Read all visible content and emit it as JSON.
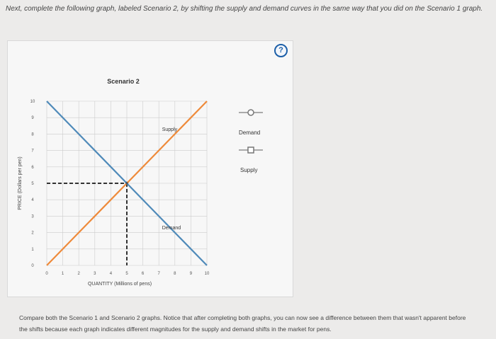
{
  "instruction": "Next, complete the following graph, labeled Scenario 2, by shifting the supply and demand curves in the same way that you did on the Scenario 1 graph.",
  "help_label": "?",
  "legend": {
    "demand_label": "Demand",
    "supply_label": "Supply",
    "demand_icon": "circle-marker-icon",
    "supply_icon": "square-marker-icon"
  },
  "compare_text": "Compare both the Scenario 1 and Scenario 2 graphs. Notice that after completing both graphs, you can now see a difference between them that wasn't apparent before the shifts because each graph indicates different magnitudes for the supply and demand shifts in the market for pens.",
  "colors": {
    "demand": "#4f8ab9",
    "supply": "#ee8a3a",
    "grid": "#cccccc",
    "equilibrium": "#333333"
  },
  "chart_data": {
    "type": "line",
    "title": "Scenario 2",
    "xlabel": "QUANTITY (Millions of pens)",
    "ylabel": "PRICE (Dollars per pen)",
    "xlim": [
      0,
      10
    ],
    "ylim": [
      0,
      10
    ],
    "x_ticks": [
      "0",
      "1",
      "2",
      "3",
      "4",
      "5",
      "6",
      "7",
      "8",
      "9",
      "10"
    ],
    "y_ticks": [
      "0",
      "1",
      "2",
      "3",
      "4",
      "5",
      "6",
      "7",
      "8",
      "9",
      "10"
    ],
    "grid": true,
    "series": [
      {
        "name": "Supply",
        "x": [
          0,
          10
        ],
        "y": [
          0,
          10
        ]
      },
      {
        "name": "Demand",
        "x": [
          0,
          10
        ],
        "y": [
          10,
          0
        ]
      }
    ],
    "equilibrium": {
      "x": 5,
      "y": 5
    },
    "annotations": [
      {
        "text": "Supply",
        "x": 7.2,
        "y": 8.2
      },
      {
        "text": "Demand",
        "x": 7.2,
        "y": 2.2
      }
    ]
  }
}
